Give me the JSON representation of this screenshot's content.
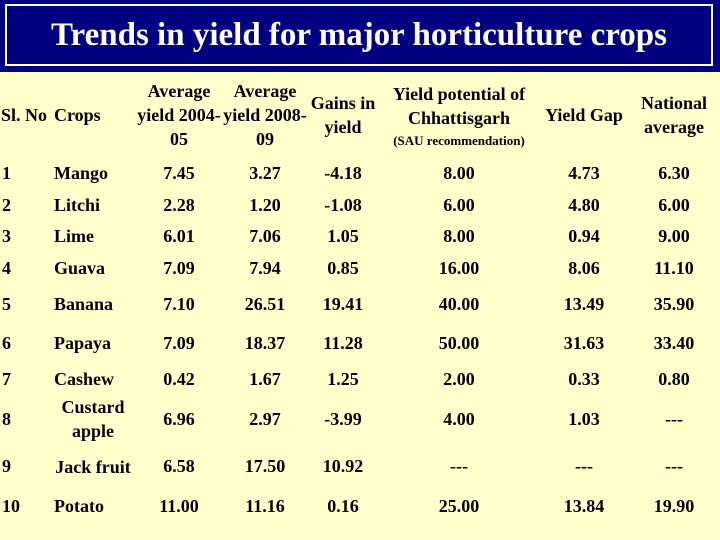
{
  "title": "Trends in yield for major horticulture crops",
  "headers": {
    "sl": "Sl. No",
    "crops": "Crops",
    "avg_2004": "Average yield 2004-05",
    "avg_2008": "Average yield 2008-09",
    "gains": "Gains in yield",
    "yield_potential": "Yield potential of Chhattisgarh",
    "yield_potential_note": "(SAU recommendation)",
    "yield_gap": "Yield Gap",
    "national": "National average"
  },
  "rows": [
    {
      "sl": "1",
      "crop": "Mango",
      "avg_2004": "7.45",
      "avg_2008": "3.27",
      "gains": "-4.18",
      "potential": "8.00",
      "gap": "4.73",
      "national": "6.30"
    },
    {
      "sl": "2",
      "crop": "Litchi",
      "avg_2004": "2.28",
      "avg_2008": "1.20",
      "gains": "-1.08",
      "potential": "6.00",
      "gap": "4.80",
      "national": "6.00"
    },
    {
      "sl": "3",
      "crop": "Lime",
      "avg_2004": "6.01",
      "avg_2008": "7.06",
      "gains": "1.05",
      "potential": "8.00",
      "gap": "0.94",
      "national": "9.00"
    },
    {
      "sl": "4",
      "crop": "Guava",
      "avg_2004": "7.09",
      "avg_2008": "7.94",
      "gains": "0.85",
      "potential": "16.00",
      "gap": "8.06",
      "national": "11.10"
    },
    {
      "sl": "5",
      "crop": "Banana",
      "avg_2004": "7.10",
      "avg_2008": "26.51",
      "gains": "19.41",
      "potential": "40.00",
      "gap": "13.49",
      "national": "35.90"
    },
    {
      "sl": "6",
      "crop": "Papaya",
      "avg_2004": "7.09",
      "avg_2008": "18.37",
      "gains": "11.28",
      "potential": "50.00",
      "gap": "31.63",
      "national": "33.40"
    },
    {
      "sl": "7",
      "crop": "Cashew",
      "avg_2004": "0.42",
      "avg_2008": "1.67",
      "gains": "1.25",
      "potential": "2.00",
      "gap": "0.33",
      "national": "0.80"
    },
    {
      "sl": "8",
      "crop": "Custard apple",
      "avg_2004": "6.96",
      "avg_2008": "2.97",
      "gains": "-3.99",
      "potential": "4.00",
      "gap": "1.03",
      "national": "---"
    },
    {
      "sl": "9",
      "crop": "Jack fruit",
      "avg_2004": "6.58",
      "avg_2008": "17.50",
      "gains": "10.92",
      "potential": "---",
      "gap": "---",
      "national": "---"
    },
    {
      "sl": "10",
      "crop": "Potato",
      "avg_2004": "11.00",
      "avg_2008": "11.16",
      "gains": "0.16",
      "potential": "25.00",
      "gap": "13.84",
      "national": "19.90"
    }
  ],
  "colors": {
    "background": "#ffffcc",
    "title_bar": "#000080",
    "title_text": "#ffffff"
  }
}
